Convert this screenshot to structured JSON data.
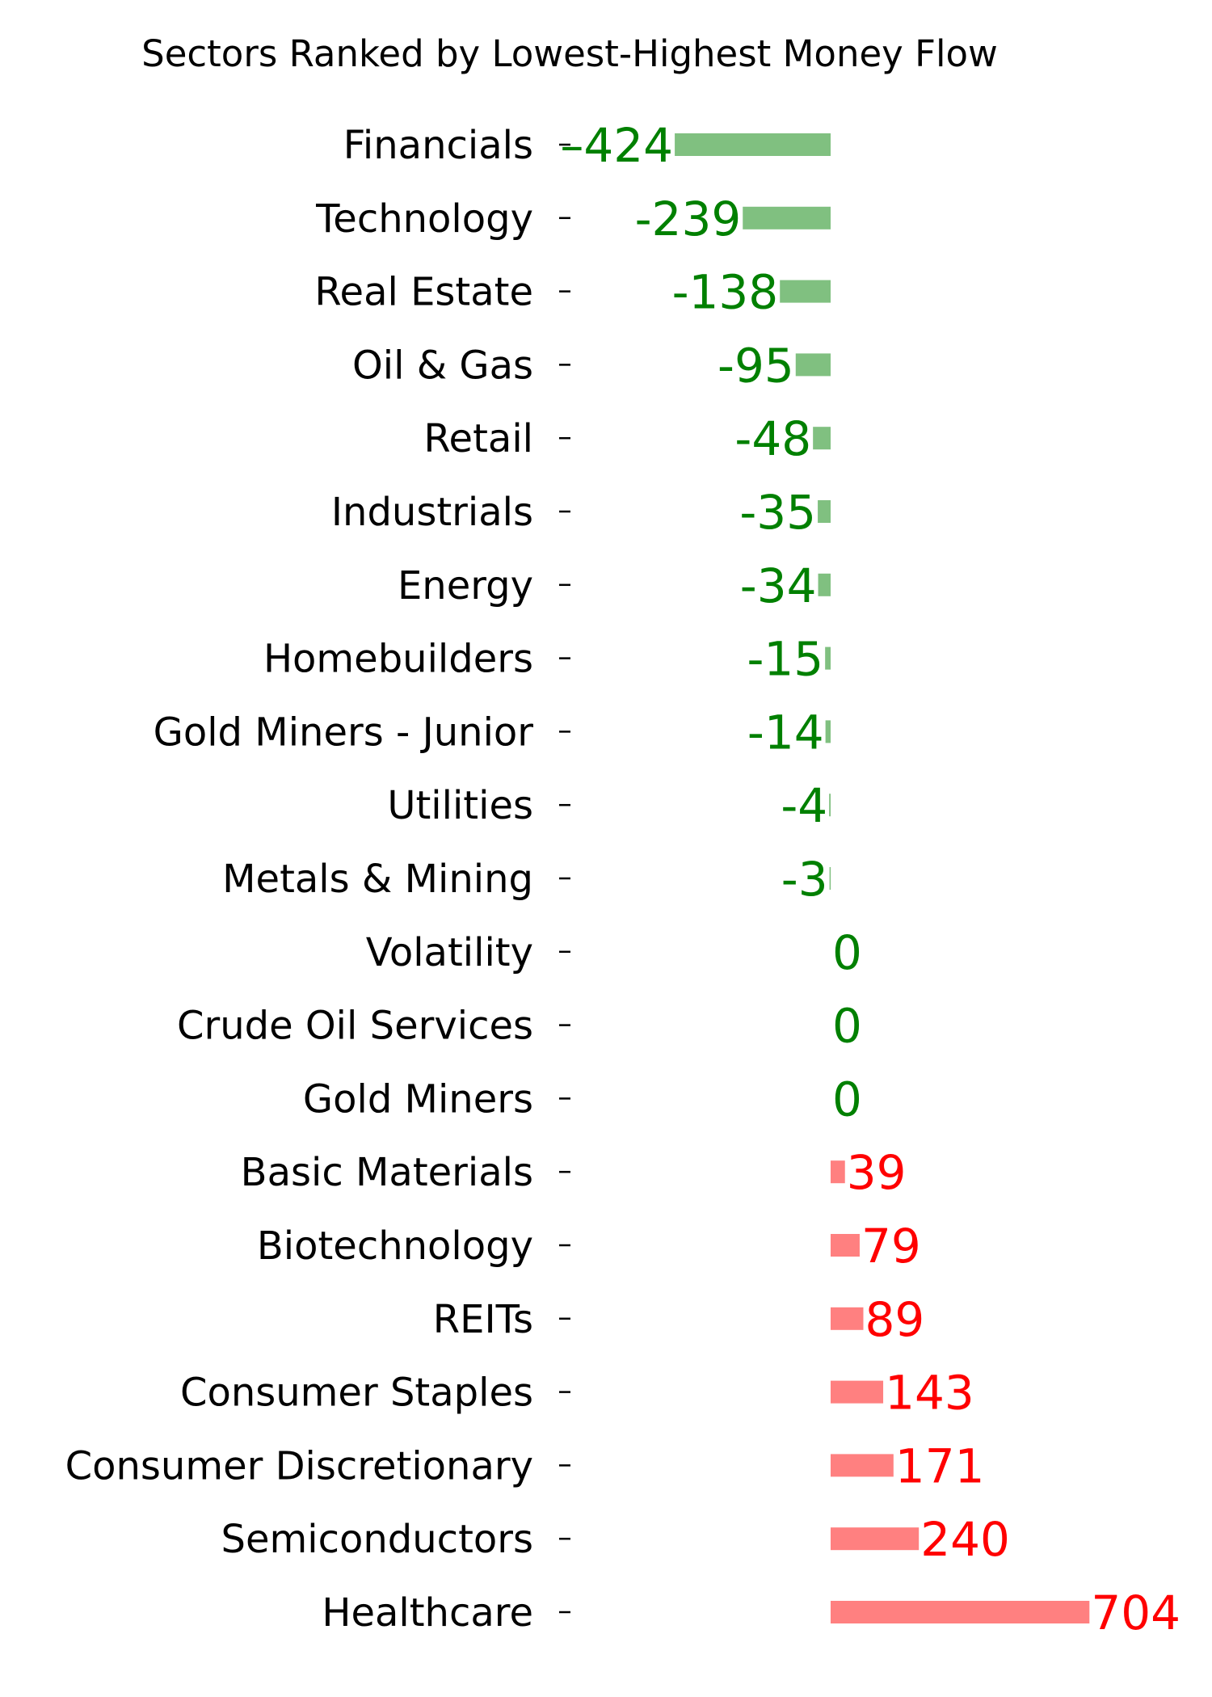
{
  "chart_data": {
    "type": "bar",
    "orientation": "horizontal",
    "title": "Sectors Ranked by Lowest-Highest Money Flow",
    "xlabel": "",
    "ylabel": "",
    "grid": false,
    "xlim": [
      -424,
      704
    ],
    "categories": [
      "Financials",
      "Technology",
      "Real Estate",
      "Oil & Gas",
      "Retail",
      "Industrials",
      "Energy",
      "Homebuilders",
      "Gold Miners - Junior",
      "Utilities",
      "Metals & Mining",
      "Volatility",
      "Crude Oil Services",
      "Gold Miners",
      "Basic Materials",
      "Biotechnology",
      "REITs",
      "Consumer Staples",
      "Consumer Discretionary",
      "Semiconductors",
      "Healthcare"
    ],
    "values": [
      -424,
      -239,
      -138,
      -95,
      -48,
      -35,
      -34,
      -15,
      -14,
      -4,
      -3,
      0,
      0,
      0,
      39,
      79,
      89,
      143,
      171,
      240,
      704
    ],
    "value_labels": [
      "–424",
      "-239",
      "-138",
      "-95",
      "-48",
      "-35",
      "-34",
      "-15",
      "-14",
      "-4",
      "-3",
      "0",
      "0",
      "0",
      "39",
      "79",
      "89",
      "143",
      "171",
      "240",
      "704"
    ],
    "colors": {
      "negative_bar": "#80c080",
      "negative_text": "#008000",
      "positive_bar": "#ff8080",
      "positive_text": "#ff0000",
      "zero_text": "#008000"
    }
  }
}
